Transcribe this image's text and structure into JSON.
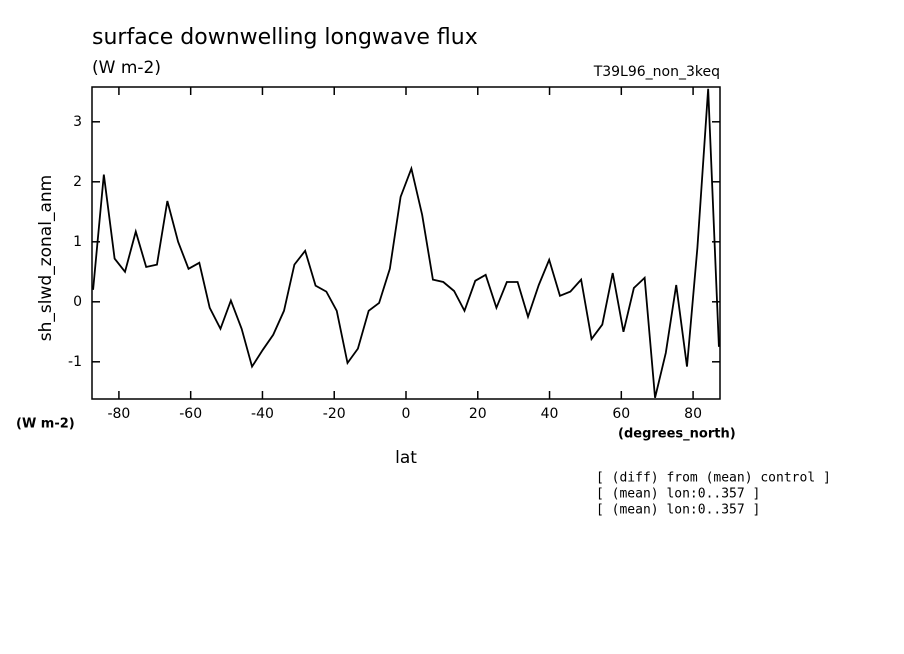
{
  "chart_data": {
    "type": "line",
    "title": "surface downwelling longwave flux",
    "units": "(W m-2)",
    "subtitle": "T39L96_non_3keq",
    "ylabel": "sh_slwd_zonal_anm",
    "y_units": "(W m-2)",
    "xlabel": "lat",
    "x_units": "(degrees_north)",
    "notes": [
      "[ (diff) from (mean) control ]",
      "[ (mean) lon:0..357 ]",
      "[ (mean) lon:0..357 ]"
    ],
    "x": [
      -87.2,
      -84.2,
      -81.2,
      -78.3,
      -75.3,
      -72.4,
      -69.4,
      -66.5,
      -63.5,
      -60.6,
      -57.6,
      -54.7,
      -51.7,
      -48.8,
      -45.8,
      -42.9,
      -39.9,
      -37.0,
      -34.0,
      -31.1,
      -28.1,
      -25.2,
      -22.2,
      -19.3,
      -16.3,
      -13.4,
      -10.4,
      -7.5,
      -4.5,
      -1.5,
      1.5,
      4.5,
      7.5,
      10.4,
      13.4,
      16.3,
      19.3,
      22.2,
      25.2,
      28.1,
      31.1,
      34.0,
      37.0,
      39.9,
      42.9,
      45.8,
      48.8,
      51.7,
      54.7,
      57.6,
      60.6,
      63.5,
      66.5,
      69.4,
      72.4,
      75.3,
      78.3,
      81.2,
      84.2,
      87.2
    ],
    "series": [
      {
        "color": "#000000",
        "values": [
          0.2,
          2.12,
          0.72,
          0.5,
          1.17,
          0.58,
          0.62,
          1.68,
          1.0,
          0.55,
          0.65,
          -0.1,
          -0.45,
          0.02,
          -0.45,
          -1.08,
          -0.8,
          -0.55,
          -0.15,
          0.62,
          0.85,
          0.27,
          0.17,
          -0.15,
          -1.02,
          -0.78,
          -0.15,
          -0.02,
          0.55,
          1.75,
          2.22,
          1.45,
          0.37,
          0.33,
          0.18,
          -0.15,
          0.35,
          0.45,
          -0.1,
          0.33,
          0.33,
          -0.25,
          0.28,
          0.7,
          0.1,
          0.17,
          0.37,
          -0.62,
          -0.38,
          0.48,
          -0.5,
          0.23,
          0.4,
          -1.6,
          -0.85,
          0.28,
          -1.08,
          0.9,
          3.55,
          -0.75
        ]
      }
    ],
    "xlim": [
      -87.5,
      87.5
    ],
    "xticks": [
      -80,
      -60,
      -40,
      -20,
      0,
      20,
      40,
      60,
      80
    ],
    "ylim": [
      -1.62,
      3.58
    ],
    "yticks": [
      -1,
      0,
      1,
      2,
      3
    ]
  }
}
